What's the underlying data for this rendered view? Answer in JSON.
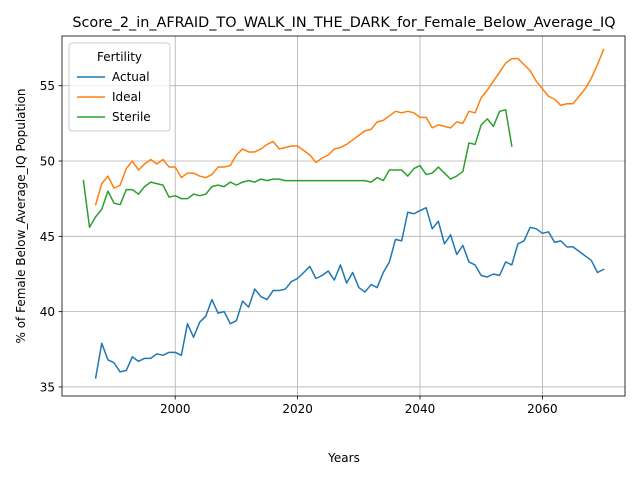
{
  "chart_data": {
    "type": "line",
    "title": "Score_2_in_AFRAID_TO_WALK_IN_THE_DARK_for_Female_Below_Average_IQ",
    "xlabel": "Years",
    "ylabel": "% of Female Below_Average_IQ Population",
    "xlim": [
      1981.5,
      2073.5
    ],
    "ylim": [
      34.4,
      58.3
    ],
    "xticks": [
      2000,
      2020,
      2040,
      2060
    ],
    "yticks": [
      35,
      40,
      45,
      50,
      55
    ],
    "grid": true,
    "legend": {
      "title": "Fertility",
      "placement": "top-left"
    },
    "series": [
      {
        "name": "Actual",
        "color": "#1f77b4",
        "x": [
          1987,
          1988,
          1989,
          1990,
          1991,
          1992,
          1993,
          1994,
          1995,
          1996,
          1997,
          1998,
          1999,
          2000,
          2001,
          2002,
          2003,
          2004,
          2005,
          2006,
          2007,
          2008,
          2009,
          2010,
          2011,
          2012,
          2013,
          2014,
          2015,
          2016,
          2017,
          2018,
          2019,
          2020,
          2021,
          2022,
          2023,
          2024,
          2025,
          2026,
          2027,
          2028,
          2029,
          2030,
          2031,
          2032,
          2033,
          2034,
          2035,
          2036,
          2037,
          2038,
          2039,
          2040,
          2041,
          2042,
          2043,
          2044,
          2045,
          2046,
          2047,
          2048,
          2049,
          2050,
          2051,
          2052,
          2053,
          2054,
          2055,
          2056,
          2057,
          2058,
          2059,
          2060,
          2061,
          2062,
          2063,
          2064,
          2065,
          2066,
          2067,
          2068,
          2069,
          2070
        ],
        "y": [
          35.6,
          37.9,
          36.8,
          36.6,
          36.0,
          36.1,
          37.0,
          36.7,
          36.9,
          36.9,
          37.2,
          37.1,
          37.3,
          37.3,
          37.1,
          39.2,
          38.3,
          39.3,
          39.7,
          40.8,
          39.9,
          40.0,
          39.2,
          39.4,
          40.7,
          40.3,
          41.5,
          41.0,
          40.8,
          41.4,
          41.4,
          41.5,
          42.0,
          42.2,
          42.6,
          43.0,
          42.2,
          42.4,
          42.7,
          42.1,
          43.1,
          41.9,
          42.6,
          41.6,
          41.3,
          41.8,
          41.6,
          42.6,
          43.3,
          44.8,
          44.7,
          46.6,
          46.5,
          46.7,
          46.9,
          45.5,
          46.0,
          44.5,
          45.1,
          43.8,
          44.4,
          43.3,
          43.1,
          42.4,
          42.3,
          42.5,
          42.4,
          43.3,
          43.1,
          44.5,
          44.7,
          45.6,
          45.5,
          45.2,
          45.3,
          44.6,
          44.7,
          44.3,
          44.3,
          44.0,
          43.7,
          43.4,
          42.6,
          42.8
        ]
      },
      {
        "name": "Ideal",
        "color": "#ff7f0e",
        "x": [
          1987,
          1988,
          1989,
          1990,
          1991,
          1992,
          1993,
          1994,
          1995,
          1996,
          1997,
          1998,
          1999,
          2000,
          2001,
          2002,
          2003,
          2004,
          2005,
          2006,
          2007,
          2008,
          2009,
          2010,
          2011,
          2012,
          2013,
          2014,
          2015,
          2016,
          2017,
          2018,
          2019,
          2020,
          2021,
          2022,
          2023,
          2024,
          2025,
          2026,
          2027,
          2028,
          2029,
          2030,
          2031,
          2032,
          2033,
          2034,
          2035,
          2036,
          2037,
          2038,
          2039,
          2040,
          2041,
          2042,
          2043,
          2044,
          2045,
          2046,
          2047,
          2048,
          2049,
          2050,
          2051,
          2052,
          2053,
          2054,
          2055,
          2056,
          2057,
          2058,
          2059,
          2060,
          2061,
          2062,
          2063,
          2064,
          2065,
          2066,
          2067,
          2068,
          2069,
          2070
        ],
        "y": [
          47.1,
          48.5,
          49.0,
          48.2,
          48.4,
          49.5,
          50.0,
          49.4,
          49.8,
          50.1,
          49.8,
          50.1,
          49.6,
          49.6,
          48.9,
          49.2,
          49.2,
          49.0,
          48.9,
          49.1,
          49.6,
          49.6,
          49.7,
          50.4,
          50.8,
          50.6,
          50.6,
          50.8,
          51.1,
          51.3,
          50.8,
          50.9,
          51.0,
          51.0,
          50.7,
          50.4,
          49.9,
          50.2,
          50.4,
          50.8,
          50.9,
          51.1,
          51.4,
          51.7,
          52.0,
          52.1,
          52.6,
          52.7,
          53.0,
          53.3,
          53.2,
          53.3,
          53.2,
          52.9,
          52.9,
          52.2,
          52.4,
          52.3,
          52.2,
          52.6,
          52.5,
          53.3,
          53.2,
          54.2,
          54.7,
          55.3,
          55.9,
          56.5,
          56.8,
          56.8,
          56.4,
          56.0,
          55.3,
          54.8,
          54.3,
          54.1,
          53.7,
          53.8,
          53.8,
          54.3,
          54.8,
          55.5,
          56.4,
          57.4
        ]
      },
      {
        "name": "Sterile",
        "color": "#2ca02c",
        "x": [
          1985,
          1986,
          1987,
          1988,
          1989,
          1990,
          1991,
          1992,
          1993,
          1994,
          1995,
          1996,
          1997,
          1998,
          1999,
          2000,
          2001,
          2002,
          2003,
          2004,
          2005,
          2006,
          2007,
          2008,
          2009,
          2010,
          2011,
          2012,
          2013,
          2014,
          2015,
          2016,
          2017,
          2018,
          2019,
          2020,
          2021,
          2022,
          2023,
          2024,
          2025,
          2026,
          2027,
          2028,
          2029,
          2030,
          2031,
          2032,
          2033,
          2034,
          2035,
          2036,
          2037,
          2038,
          2039,
          2040,
          2041,
          2042,
          2043,
          2044,
          2045,
          2046,
          2047,
          2048,
          2049,
          2050,
          2051,
          2052,
          2053,
          2054,
          2055
        ],
        "y": [
          48.7,
          45.6,
          46.3,
          46.8,
          48.0,
          47.2,
          47.1,
          48.1,
          48.1,
          47.8,
          48.3,
          48.6,
          48.5,
          48.4,
          47.6,
          47.7,
          47.5,
          47.5,
          47.8,
          47.7,
          47.8,
          48.3,
          48.4,
          48.3,
          48.6,
          48.4,
          48.6,
          48.7,
          48.6,
          48.8,
          48.7,
          48.8,
          48.8,
          48.7,
          48.7,
          48.7,
          48.7,
          48.7,
          48.7,
          48.7,
          48.7,
          48.7,
          48.7,
          48.7,
          48.7,
          48.7,
          48.7,
          48.6,
          48.9,
          48.7,
          49.4,
          49.4,
          49.4,
          49.0,
          49.5,
          49.7,
          49.1,
          49.2,
          49.6,
          49.2,
          48.8,
          49.0,
          49.3,
          51.2,
          51.1,
          52.4,
          52.8,
          52.3,
          53.3,
          53.4,
          51.0
        ]
      }
    ]
  }
}
